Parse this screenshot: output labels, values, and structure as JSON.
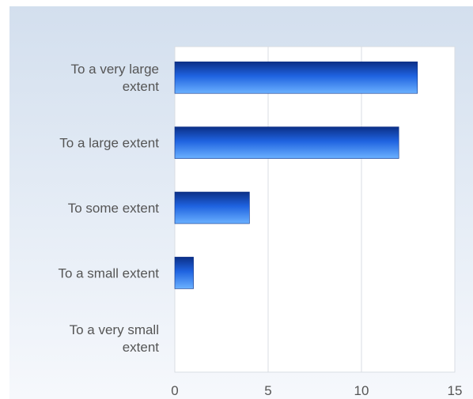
{
  "chart_data": {
    "type": "bar",
    "orientation": "horizontal",
    "categories": [
      [
        "To a very large",
        "extent"
      ],
      [
        "To a large extent"
      ],
      [
        "To some extent"
      ],
      [
        "To a small extent"
      ],
      [
        "To a very small",
        "extent"
      ]
    ],
    "values": [
      13,
      12,
      4,
      1,
      0
    ],
    "xlim": [
      0,
      15
    ],
    "xticks": [
      "0",
      "5",
      "10",
      "15"
    ],
    "title": "",
    "xlabel": "",
    "ylabel": "",
    "grid": "vertical",
    "colors": {
      "bar_dark": "#0b2f86",
      "bar_mid": "#1f63e0",
      "bar_light": "#6bb1ff",
      "plot_bg": "#ffffff",
      "grid": "#d9dde3",
      "text": "#555555"
    }
  }
}
